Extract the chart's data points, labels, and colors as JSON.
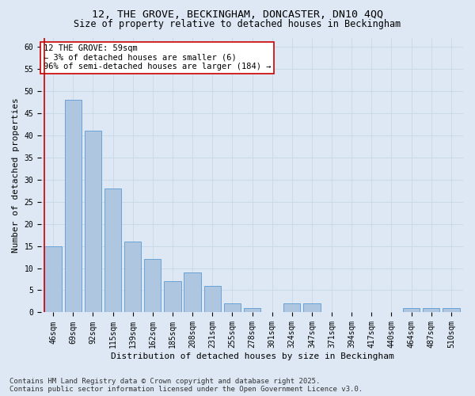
{
  "title": "12, THE GROVE, BECKINGHAM, DONCASTER, DN10 4QQ",
  "subtitle": "Size of property relative to detached houses in Beckingham",
  "xlabel": "Distribution of detached houses by size in Beckingham",
  "ylabel": "Number of detached properties",
  "bar_labels": [
    "46sqm",
    "69sqm",
    "92sqm",
    "115sqm",
    "139sqm",
    "162sqm",
    "185sqm",
    "208sqm",
    "231sqm",
    "255sqm",
    "278sqm",
    "301sqm",
    "324sqm",
    "347sqm",
    "371sqm",
    "394sqm",
    "417sqm",
    "440sqm",
    "464sqm",
    "487sqm",
    "510sqm"
  ],
  "bar_values": [
    15,
    48,
    41,
    28,
    16,
    12,
    7,
    9,
    6,
    2,
    1,
    0,
    2,
    2,
    0,
    0,
    0,
    0,
    1,
    1,
    1
  ],
  "bar_color": "#aec6e0",
  "bar_edge_color": "#5b9bd5",
  "vline_color": "#cc0000",
  "vline_x": 0.0,
  "annotation_text": "12 THE GROVE: 59sqm\n← 3% of detached houses are smaller (6)\n96% of semi-detached houses are larger (184) →",
  "annotation_box_color": "#ffffff",
  "annotation_box_edge": "#cc0000",
  "ylim": [
    0,
    62
  ],
  "yticks": [
    0,
    5,
    10,
    15,
    20,
    25,
    30,
    35,
    40,
    45,
    50,
    55,
    60
  ],
  "grid_color": "#c8d8e8",
  "background_color": "#dde8f4",
  "footnote": "Contains HM Land Registry data © Crown copyright and database right 2025.\nContains public sector information licensed under the Open Government Licence v3.0.",
  "title_fontsize": 9.5,
  "subtitle_fontsize": 8.5,
  "xlabel_fontsize": 8,
  "ylabel_fontsize": 8,
  "tick_fontsize": 7,
  "annotation_fontsize": 7.5,
  "footnote_fontsize": 6.5
}
